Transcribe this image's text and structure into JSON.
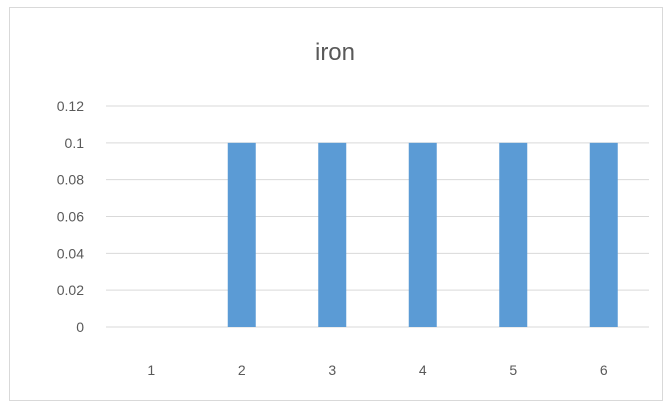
{
  "chart_data": {
    "type": "bar",
    "title": "iron",
    "xlabel": "",
    "ylabel": "",
    "categories": [
      "1",
      "2",
      "3",
      "4",
      "5",
      "6"
    ],
    "series": [
      {
        "values": [
          0,
          0.1,
          0.1,
          0.1,
          0.1,
          0.1
        ]
      }
    ],
    "ylim": [
      0,
      0.12
    ],
    "yticks": [
      "0",
      "0.02",
      "0.04",
      "0.06",
      "0.08",
      "0.1",
      "0.12"
    ],
    "grid": true,
    "legend": "none",
    "colors": {
      "bar": "#5b9bd5",
      "grid": "#d9d9d9",
      "text": "#595959"
    }
  }
}
